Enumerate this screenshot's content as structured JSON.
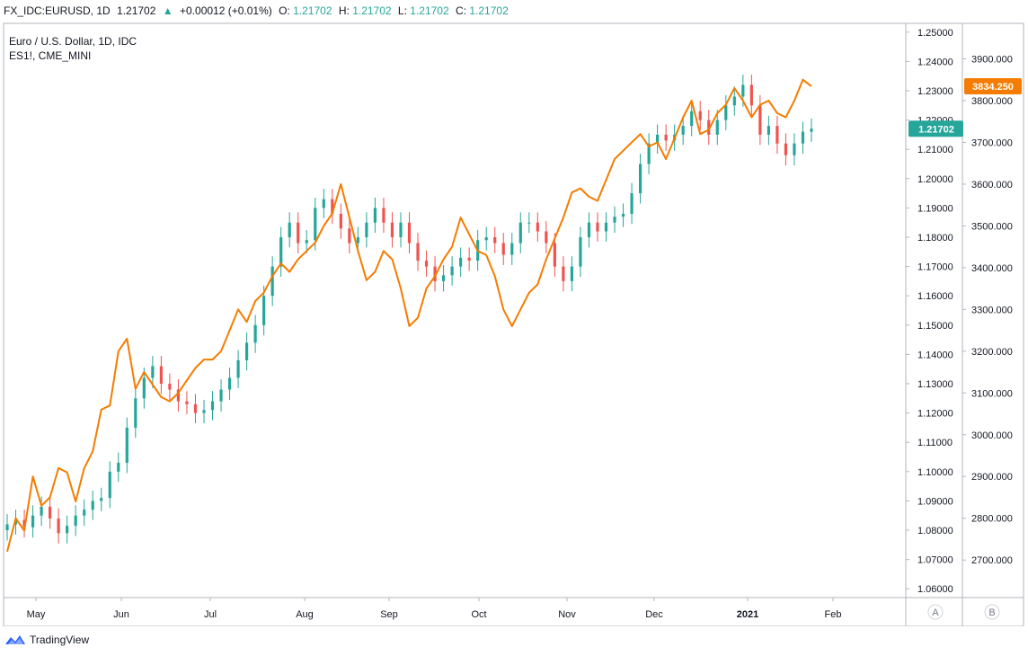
{
  "header": {
    "symbol": "FX_IDC:EURUSD, 1D",
    "last": "1.21702",
    "change": "+0.00012 (+0.01%)",
    "ohlc": [
      {
        "k": "O:",
        "v": "1.21702"
      },
      {
        "k": "H:",
        "v": "1.21702"
      },
      {
        "k": "L:",
        "v": "1.21702"
      },
      {
        "k": "C:",
        "v": "1.21702"
      }
    ]
  },
  "legend": {
    "main": "Euro / U.S. Dollar, 1D, IDC",
    "compare": "ES1!, CME_MINI"
  },
  "footer": {
    "brand": "TradingView"
  },
  "chart_data": {
    "type": "line",
    "x_axis_labels": [
      "May",
      "Jun",
      "Jul",
      "Aug",
      "Sep",
      "Oct",
      "Nov",
      "Dec",
      "2021",
      "Feb"
    ],
    "y_left_ticks": [
      "1.25000",
      "1.24000",
      "1.23000",
      "1.22000",
      "1.21000",
      "1.20000",
      "1.19000",
      "1.18000",
      "1.17000",
      "1.16000",
      "1.15000",
      "1.14000",
      "1.13000",
      "1.12000",
      "1.11000",
      "1.10000",
      "1.09000",
      "1.08000",
      "1.07000",
      "1.06000"
    ],
    "y_right_ticks": [
      "3900.000",
      "3800.000",
      "3700.000",
      "3600.000",
      "3500.000",
      "3400.000",
      "3300.000",
      "3200.000",
      "3100.000",
      "3000.000",
      "2900.000",
      "2800.000",
      "2700.000"
    ],
    "ylim_left": [
      1.057,
      1.253
    ],
    "ylim_right": [
      2610,
      3985
    ],
    "series": [
      {
        "name": "EURUSD",
        "style": "candlestick",
        "color_up": "#26a69a",
        "color_down": "#ef5350",
        "close": [
          1.082,
          1.0835,
          1.081,
          1.085,
          1.088,
          1.084,
          1.079,
          1.0815,
          1.085,
          1.087,
          1.09,
          1.091,
          1.1,
          1.103,
          1.115,
          1.125,
          1.132,
          1.136,
          1.13,
          1.128,
          1.124,
          1.123,
          1.12,
          1.121,
          1.124,
          1.128,
          1.132,
          1.138,
          1.144,
          1.15,
          1.16,
          1.17,
          1.18,
          1.185,
          1.178,
          1.179,
          1.19,
          1.193,
          1.188,
          1.183,
          1.178,
          1.18,
          1.185,
          1.19,
          1.185,
          1.18,
          1.185,
          1.178,
          1.172,
          1.17,
          1.165,
          1.167,
          1.17,
          1.173,
          1.172,
          1.179,
          1.18,
          1.178,
          1.174,
          1.178,
          1.185,
          1.185,
          1.182,
          1.178,
          1.17,
          1.165,
          1.17,
          1.18,
          1.185,
          1.182,
          1.185,
          1.187,
          1.188,
          1.195,
          1.205,
          1.212,
          1.215,
          1.213,
          1.215,
          1.218,
          1.223,
          1.22,
          1.215,
          1.22,
          1.225,
          1.228,
          1.232,
          1.225,
          1.215,
          1.218,
          1.212,
          1.208,
          1.212,
          1.216,
          1.21702
        ]
      },
      {
        "name": "ES1!",
        "style": "line",
        "color": "#f57c00",
        "axis": "right",
        "last_label": "3834.250",
        "values": [
          2720,
          2800,
          2770,
          2900,
          2830,
          2850,
          2920,
          2910,
          2840,
          2920,
          2960,
          3060,
          3070,
          3200,
          3230,
          3110,
          3150,
          3120,
          3090,
          3080,
          3100,
          3130,
          3160,
          3180,
          3180,
          3200,
          3250,
          3300,
          3270,
          3320,
          3340,
          3380,
          3410,
          3390,
          3420,
          3440,
          3460,
          3500,
          3530,
          3600,
          3520,
          3440,
          3370,
          3390,
          3440,
          3420,
          3350,
          3260,
          3280,
          3350,
          3380,
          3420,
          3450,
          3520,
          3480,
          3440,
          3430,
          3380,
          3300,
          3260,
          3300,
          3340,
          3360,
          3420,
          3470,
          3520,
          3580,
          3590,
          3570,
          3560,
          3610,
          3660,
          3680,
          3700,
          3720,
          3690,
          3700,
          3660,
          3710,
          3760,
          3800,
          3720,
          3730,
          3770,
          3790,
          3830,
          3800,
          3760,
          3790,
          3800,
          3770,
          3760,
          3800,
          3850,
          3834.25
        ]
      }
    ],
    "last_price_label": "1.21702",
    "scale_buttons": [
      "A",
      "B"
    ]
  }
}
